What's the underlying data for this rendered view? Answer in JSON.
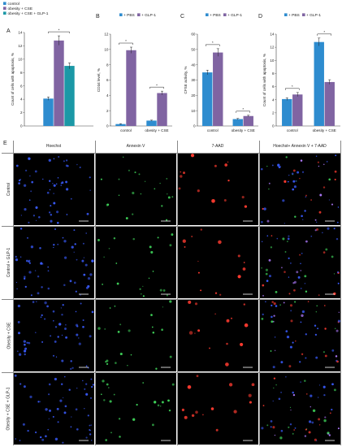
{
  "chart_data": [
    {
      "panel": "A",
      "type": "bar",
      "ylabel": "Count of cells with apoptosis, %",
      "legend": [
        "control",
        "obesity + CSE",
        "obesity + CSE + GLP-1"
      ],
      "legend_position": "top-left",
      "categories": [
        ""
      ],
      "series": [
        {
          "name": "control",
          "values": [
            4.1
          ],
          "error": [
            0.25
          ],
          "color": "#2e8ccf"
        },
        {
          "name": "obesity + CSE",
          "values": [
            12.8
          ],
          "error": [
            0.7
          ],
          "color": "#8064a2"
        },
        {
          "name": "obesity + CSE + GLP-1",
          "values": [
            9.0
          ],
          "error": [
            0.45
          ],
          "color": "#1b98a6"
        }
      ],
      "ylim": [
        0,
        14
      ],
      "yticks": [
        "0",
        "2",
        "4",
        "6",
        "8",
        "10",
        "12",
        "14"
      ],
      "significance": [
        "*"
      ]
    },
    {
      "panel": "B",
      "type": "bar",
      "ylabel": "CD34 level, %",
      "legend": [
        "+ PBS",
        "+ GLP-1"
      ],
      "legend_position": "top",
      "categories": [
        "control",
        "obesity + CSE"
      ],
      "series": [
        {
          "name": "+ PBS",
          "values": [
            0.25,
            0.7
          ],
          "error": [
            0.05,
            0.06
          ],
          "color": "#2e8ccf"
        },
        {
          "name": "+ GLP-1",
          "values": [
            9.9,
            4.3
          ],
          "error": [
            0.4,
            0.25
          ],
          "color": "#8064a2"
        }
      ],
      "ylim": [
        0,
        12
      ],
      "yticks": [
        "0",
        "2",
        "4",
        "6",
        "8",
        "10",
        "12"
      ],
      "significance": [
        "*",
        "*"
      ]
    },
    {
      "panel": "C",
      "type": "bar",
      "ylabel": "CFSE activity, %",
      "legend": [
        "+ PBS",
        "+ GLP-1"
      ],
      "legend_position": "top",
      "categories": [
        "control",
        "obesity + CSE"
      ],
      "series": [
        {
          "name": "+ PBS",
          "values": [
            35,
            4.5
          ],
          "error": [
            1.5,
            0.4
          ],
          "color": "#2e8ccf"
        },
        {
          "name": "+ GLP-1",
          "values": [
            48,
            6.5
          ],
          "error": [
            2.5,
            0.5
          ],
          "color": "#8064a2"
        }
      ],
      "ylim": [
        0,
        60
      ],
      "yticks": [
        "0",
        "10",
        "20",
        "30",
        "40",
        "50",
        "60"
      ],
      "significance": [
        "*",
        "*"
      ]
    },
    {
      "panel": "D",
      "type": "bar",
      "ylabel": "Count of cells with apoptosis, %",
      "legend": [
        "+ PBS",
        "+ GLP-1"
      ],
      "legend_position": "top",
      "categories": [
        "control",
        "obesity + CSE"
      ],
      "series": [
        {
          "name": "+ PBS",
          "values": [
            4.1,
            12.8
          ],
          "error": [
            0.2,
            0.6
          ],
          "color": "#2e8ccf"
        },
        {
          "name": "+ GLP-1",
          "values": [
            4.8,
            6.7
          ],
          "error": [
            0.3,
            0.35
          ],
          "color": "#8064a2"
        }
      ],
      "ylim": [
        0,
        14
      ],
      "yticks": [
        "0",
        "2",
        "4",
        "6",
        "8",
        "10",
        "12",
        "14"
      ],
      "significance": [
        "*",
        "*"
      ]
    }
  ],
  "panel_e": {
    "letter": "E",
    "columns": [
      "Hoechst",
      "Annexin V",
      "7-AAD",
      "Hoechst+ Annexin V + 7-AAD"
    ],
    "rows": [
      "Control",
      "Control + GLP-1",
      "Obesity + CSE",
      "Obesity + CSE + GLP-1"
    ],
    "channel_colors": [
      "#3a5cff",
      "#3fd45a",
      "#ff3b30",
      "#9a7cff"
    ]
  }
}
